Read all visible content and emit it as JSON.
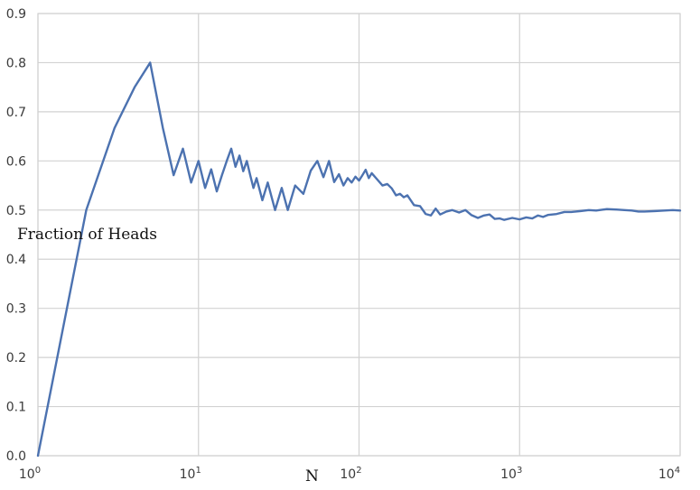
{
  "chart_data": {
    "type": "line",
    "title": "",
    "xlabel": "N",
    "ylabel": "Fraction of Heads",
    "xscale": "log",
    "xlim": [
      1,
      10000
    ],
    "ylim": [
      0.0,
      0.9
    ],
    "grid": true,
    "line_color": "#4c72b0",
    "grid_color": "#d2d2d2",
    "x_ticks": [
      {
        "value": 1,
        "base": "10",
        "exp": "0"
      },
      {
        "value": 10,
        "base": "10",
        "exp": "1"
      },
      {
        "value": 100,
        "base": "10",
        "exp": "2"
      },
      {
        "value": 1000,
        "base": "10",
        "exp": "3"
      },
      {
        "value": 10000,
        "base": "10",
        "exp": "4"
      }
    ],
    "y_ticks": [
      {
        "value": 0.0,
        "label": "0.0"
      },
      {
        "value": 0.1,
        "label": "0.1"
      },
      {
        "value": 0.2,
        "label": "0.2"
      },
      {
        "value": 0.3,
        "label": "0.3"
      },
      {
        "value": 0.4,
        "label": "0.4"
      },
      {
        "value": 0.5,
        "label": "0.5"
      },
      {
        "value": 0.6,
        "label": "0.6"
      },
      {
        "value": 0.7,
        "label": "0.7"
      },
      {
        "value": 0.8,
        "label": "0.8"
      },
      {
        "value": 0.9,
        "label": "0.9"
      }
    ],
    "series": [
      {
        "x": [
          1,
          2,
          3,
          4,
          5,
          6,
          7,
          8,
          9,
          10,
          11,
          12,
          13,
          14,
          15,
          16,
          17,
          18,
          19,
          20,
          21,
          22,
          23,
          25,
          27,
          30,
          33,
          36,
          40,
          45,
          50,
          55,
          60,
          65,
          70,
          75,
          80,
          85,
          90,
          95,
          100,
          105,
          110,
          115,
          120,
          130,
          140,
          150,
          160,
          170,
          180,
          190,
          200,
          220,
          240,
          260,
          280,
          300,
          320,
          350,
          380,
          420,
          460,
          500,
          550,
          600,
          650,
          700,
          750,
          800,
          900,
          1000,
          1100,
          1200,
          1300,
          1400,
          1500,
          1700,
          1900,
          2100,
          2400,
          2700,
          3000,
          3500,
          4000,
          4500,
          5000,
          5500,
          6000,
          7000,
          8000,
          9000,
          10000
        ],
        "y": [
          0.0,
          0.5,
          0.667,
          0.75,
          0.8,
          0.667,
          0.571,
          0.625,
          0.556,
          0.6,
          0.545,
          0.583,
          0.538,
          0.571,
          0.6,
          0.625,
          0.588,
          0.611,
          0.579,
          0.6,
          0.571,
          0.545,
          0.565,
          0.52,
          0.556,
          0.5,
          0.545,
          0.5,
          0.55,
          0.533,
          0.58,
          0.6,
          0.567,
          0.6,
          0.557,
          0.573,
          0.55,
          0.565,
          0.556,
          0.568,
          0.56,
          0.571,
          0.582,
          0.565,
          0.575,
          0.562,
          0.55,
          0.553,
          0.544,
          0.53,
          0.533,
          0.526,
          0.53,
          0.51,
          0.508,
          0.492,
          0.489,
          0.503,
          0.491,
          0.497,
          0.5,
          0.495,
          0.5,
          0.49,
          0.484,
          0.489,
          0.491,
          0.482,
          0.483,
          0.48,
          0.484,
          0.481,
          0.485,
          0.483,
          0.489,
          0.486,
          0.49,
          0.492,
          0.496,
          0.496,
          0.498,
          0.5,
          0.499,
          0.502,
          0.501,
          0.5,
          0.499,
          0.497,
          0.497,
          0.498,
          0.499,
          0.5,
          0.499
        ]
      }
    ]
  }
}
